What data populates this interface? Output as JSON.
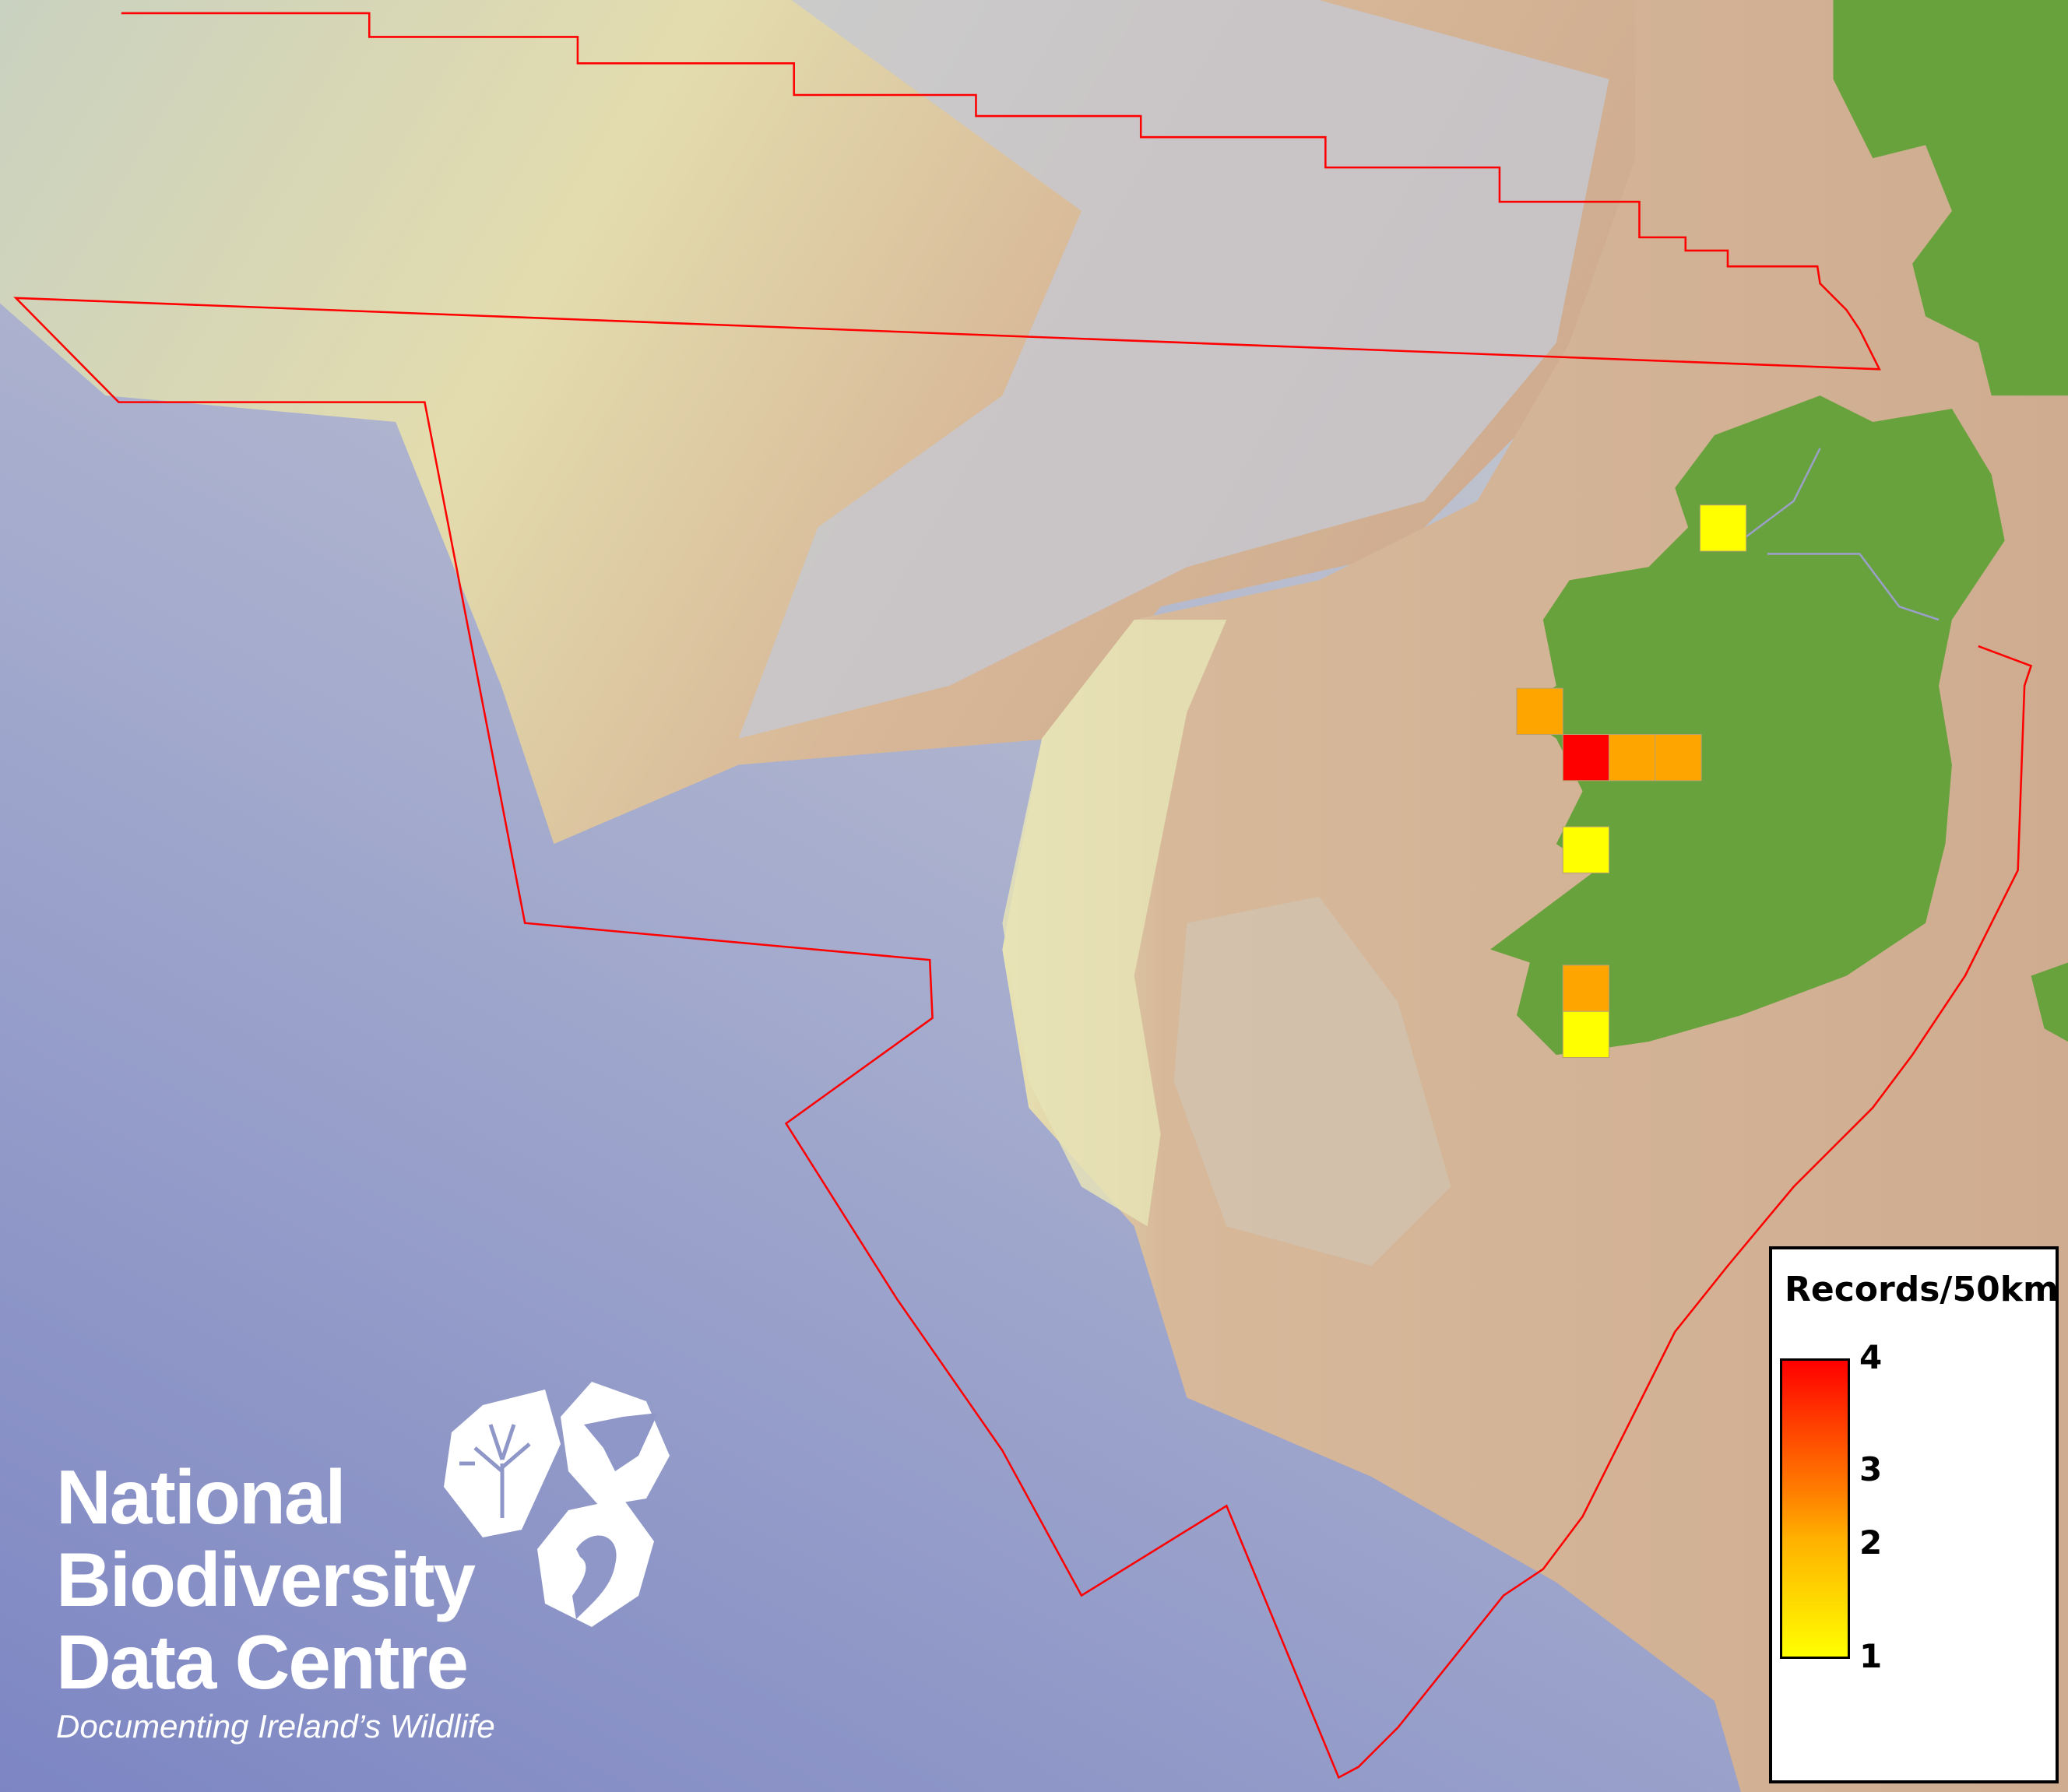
{
  "map": {
    "colors": {
      "deep_sea": "#7e88c4",
      "shelf": "#d9dcb4",
      "slope": "#b8bdd0",
      "land_shelf": "#cfae90",
      "land": "#6aa23e",
      "boundary": "#ff0000"
    },
    "records_cells": [
      1,
      2,
      4,
      2,
      2,
      1,
      2,
      1
    ]
  },
  "legend": {
    "title": "Records/50km",
    "ticks": [
      "4",
      "3",
      "2",
      "1"
    ],
    "range": [
      1,
      4
    ],
    "color_low": "#ffff00",
    "color_mid": "#ff8c00",
    "color_high": "#ff0000"
  },
  "logo": {
    "line1": "National",
    "line2": "Biodiversity",
    "line3": "Data Centre",
    "tagline": "Documenting Ireland’s Wildlife"
  }
}
